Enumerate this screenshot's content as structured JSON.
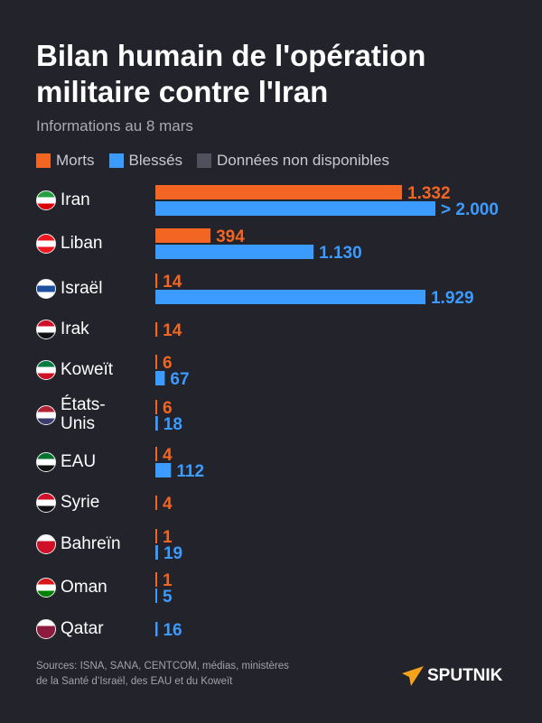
{
  "title": "Bilan humain de l'opération militaire contre l'Iran",
  "subtitle": "Informations au 8 mars",
  "colors": {
    "morts": "#f26522",
    "blesses": "#3c9bff",
    "na": "#50515c",
    "background": "#22232b"
  },
  "chart_data": {
    "type": "bar",
    "orientation": "horizontal",
    "legend": [
      "Morts",
      "Blessés",
      "Données non disponibles"
    ],
    "legend_position": "top-left",
    "categories": [
      "Iran",
      "Liban",
      "Israël",
      "Irak",
      "Koweït",
      "États-Unis",
      "EAU",
      "Syrie",
      "Bahreïn",
      "Oman",
      "Qatar"
    ],
    "series": [
      {
        "name": "Morts",
        "values": [
          1332,
          394,
          14,
          14,
          6,
          6,
          4,
          4,
          1,
          1,
          null
        ],
        "labels": [
          "1.332",
          "394",
          "14",
          "14",
          "6",
          "6",
          "4",
          "4",
          "1",
          "1",
          ""
        ]
      },
      {
        "name": "Blessés",
        "values": [
          2000,
          1130,
          1929,
          null,
          67,
          18,
          112,
          null,
          19,
          5,
          16
        ],
        "labels": [
          "> 2.000",
          "1.130",
          "1.929",
          "",
          "67",
          "18",
          "112",
          "",
          "19",
          "5",
          "16"
        ]
      }
    ]
  },
  "sources": [
    "Sources: ISNA, SANA, CENTCOM, médias, ministères",
    "de la Santé d’Israël, des EAU et du Koweït"
  ],
  "logo": "SPUTNIK"
}
